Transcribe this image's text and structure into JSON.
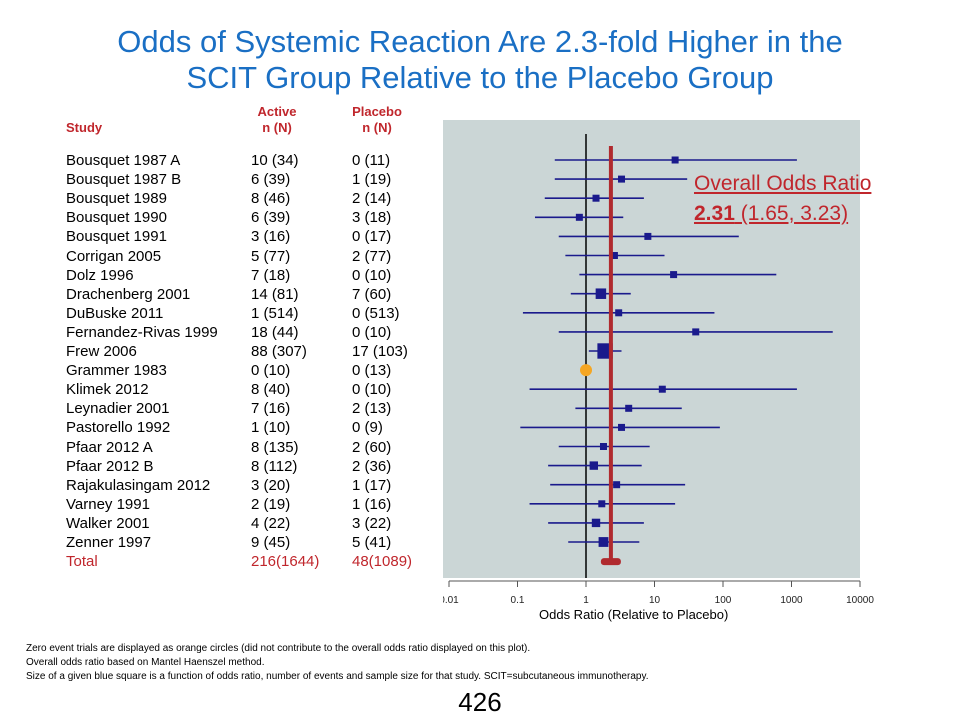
{
  "title": {
    "line1": "Odds of Systemic Reaction Are 2.3-fold Higher in the",
    "line2": "SCIT Group Relative to the Placebo Group"
  },
  "table": {
    "headers": {
      "study": "Study",
      "active_1": "Active",
      "active_2": "n (N)",
      "placebo_1": "Placebo",
      "placebo_2": "n (N)"
    },
    "rows": [
      {
        "study": "Bousquet 1987 A",
        "active": "10  (34)",
        "placebo": "0  (11)"
      },
      {
        "study": "Bousquet 1987 B",
        "active": "6  (39)",
        "placebo": "1  (19)"
      },
      {
        "study": "Bousquet 1989",
        "active": "8  (46)",
        "placebo": "2  (14)"
      },
      {
        "study": "Bousquet 1990",
        "active": "6  (39)",
        "placebo": "3  (18)"
      },
      {
        "study": "Bousquet 1991",
        "active": "3  (16)",
        "placebo": "0  (17)"
      },
      {
        "study": "Corrigan 2005",
        "active": "5  (77)",
        "placebo": "2  (77)"
      },
      {
        "study": "Dolz 1996",
        "active": "7  (18)",
        "placebo": "0  (10)"
      },
      {
        "study": "Drachenberg 2001",
        "active": "14  (81)",
        "placebo": "7  (60)"
      },
      {
        "study": "DuBuske 2011",
        "active": "1  (514)",
        "placebo": "0  (513)"
      },
      {
        "study": "Fernandez-Rivas 1999",
        "active": "18  (44)",
        "placebo": "0  (10)"
      },
      {
        "study": "Frew 2006",
        "active": "88  (307)",
        "placebo": "17  (103)"
      },
      {
        "study": "Grammer 1983",
        "active": "0  (10)",
        "placebo": "0  (13)"
      },
      {
        "study": "Klimek 2012",
        "active": "8  (40)",
        "placebo": "0  (10)"
      },
      {
        "study": "Leynadier 2001",
        "active": "7  (16)",
        "placebo": "2  (13)"
      },
      {
        "study": "Pastorello 1992",
        "active": "1  (10)",
        "placebo": "0  (9)"
      },
      {
        "study": "Pfaar 2012 A",
        "active": "8  (135)",
        "placebo": "2  (60)"
      },
      {
        "study": "Pfaar 2012 B",
        "active": "8  (112)",
        "placebo": "2  (36)"
      },
      {
        "study": "Rajakulasingam 2012",
        "active": "3  (20)",
        "placebo": "1  (17)"
      },
      {
        "study": "Varney 1991",
        "active": "2  (19)",
        "placebo": "1  (16)"
      },
      {
        "study": "Walker 2001",
        "active": "4  (22)",
        "placebo": "3  (22)"
      },
      {
        "study": "Zenner 1997",
        "active": "9  (45)",
        "placebo": "5  (41)"
      }
    ],
    "total": {
      "study": "Total",
      "active": "216(1644)",
      "placebo": "48(1089)"
    }
  },
  "overall": {
    "label": "Overall Odds Ratio",
    "value": "2.31",
    "ci": " (1.65, 3.23)"
  },
  "chart_data": {
    "type": "forest",
    "xlabel": "Odds Ratio (Relative to Placebo)",
    "xscale": "log",
    "xlim": [
      0.01,
      10000
    ],
    "xticks": [
      "0.01",
      "0.1",
      "1",
      "10",
      "100",
      "1000",
      "10000"
    ],
    "reference_line": 1,
    "overall": {
      "or": 2.31,
      "lower": 1.65,
      "upper": 3.23
    },
    "studies": [
      {
        "study": "Bousquet 1987 A",
        "or": 20,
        "lower": 0.35,
        "upper": 1200,
        "weight": 1
      },
      {
        "study": "Bousquet 1987 B",
        "or": 3.3,
        "lower": 0.35,
        "upper": 30,
        "weight": 1
      },
      {
        "study": "Bousquet 1989",
        "or": 1.4,
        "lower": 0.25,
        "upper": 7,
        "weight": 1
      },
      {
        "study": "Bousquet 1990",
        "or": 0.8,
        "lower": 0.18,
        "upper": 3.5,
        "weight": 1
      },
      {
        "study": "Bousquet 1991",
        "or": 8,
        "lower": 0.4,
        "upper": 170,
        "weight": 1
      },
      {
        "study": "Corrigan 2005",
        "or": 2.6,
        "lower": 0.5,
        "upper": 14,
        "weight": 1
      },
      {
        "study": "Dolz 1996",
        "or": 19,
        "lower": 0.8,
        "upper": 600,
        "weight": 1
      },
      {
        "study": "Drachenberg 2001",
        "or": 1.65,
        "lower": 0.6,
        "upper": 4.5,
        "weight": 1.5
      },
      {
        "study": "DuBuske 2011",
        "or": 3,
        "lower": 0.12,
        "upper": 75,
        "weight": 1
      },
      {
        "study": "Fernandez-Rivas 1999",
        "or": 40,
        "lower": 0.4,
        "upper": 4000,
        "weight": 1
      },
      {
        "study": "Frew 2006",
        "or": 1.9,
        "lower": 1.1,
        "upper": 3.3,
        "weight": 2.2
      },
      {
        "study": "Grammer 1983",
        "or": null,
        "zero_event": true
      },
      {
        "study": "Klimek 2012",
        "or": 13,
        "lower": 0.15,
        "upper": 1200,
        "weight": 1
      },
      {
        "study": "Leynadier 2001",
        "or": 4.2,
        "lower": 0.7,
        "upper": 25,
        "weight": 1
      },
      {
        "study": "Pastorello 1992",
        "or": 3.3,
        "lower": 0.11,
        "upper": 90,
        "weight": 1
      },
      {
        "study": "Pfaar 2012 A",
        "or": 1.8,
        "lower": 0.4,
        "upper": 8.5,
        "weight": 1
      },
      {
        "study": "Pfaar 2012 B",
        "or": 1.3,
        "lower": 0.28,
        "upper": 6.5,
        "weight": 1.2
      },
      {
        "study": "Rajakulasingam 2012",
        "or": 2.8,
        "lower": 0.3,
        "upper": 28,
        "weight": 1
      },
      {
        "study": "Varney 1991",
        "or": 1.7,
        "lower": 0.15,
        "upper": 20,
        "weight": 1
      },
      {
        "study": "Walker 2001",
        "or": 1.4,
        "lower": 0.28,
        "upper": 7,
        "weight": 1.2
      },
      {
        "study": "Zenner 1997",
        "or": 1.8,
        "lower": 0.55,
        "upper": 6,
        "weight": 1.4
      }
    ],
    "colors": {
      "panel": "#cbd6d6",
      "marker": "#1a1a8c",
      "line": "#1a1a8c",
      "overall": "#b02a2e",
      "zero_event": "#f5a623"
    }
  },
  "footnote": {
    "line1": "Zero event trials are displayed as orange circles (did not contribute to the overall odds ratio displayed on this plot).",
    "line2": "Overall  odds ratio based on Mantel Haenszel method.",
    "line3": "Size of a given  blue square is a function of odds ratio, number of events  and sample size for that study. SCIT=subcutaneous  immunotherapy."
  },
  "page_number": "426"
}
